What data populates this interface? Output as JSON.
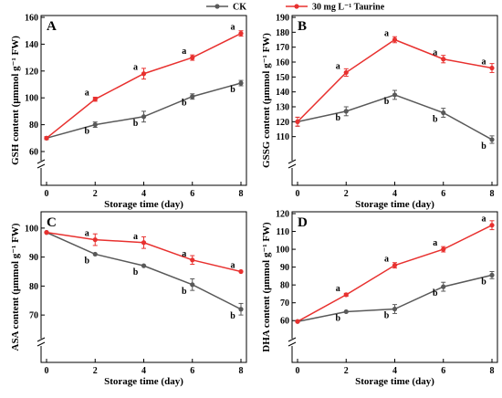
{
  "legend": [
    {
      "name": "CK",
      "color": "#595959"
    },
    {
      "name": "30 mg L⁻¹ Taurine",
      "color": "#e8312f"
    }
  ],
  "chart_data": [
    {
      "type": "line",
      "panel_label": "A",
      "xlabel": "Storage time (day)",
      "ylabel": "GSH content (μmmol g⁻¹ FW)",
      "x": [
        0,
        2,
        4,
        6,
        8
      ],
      "xticks": [
        "0",
        "2",
        "4",
        "6",
        "8"
      ],
      "ylim": [
        60,
        160
      ],
      "yticks": [
        "60",
        "80",
        "100",
        "120",
        "140",
        "160"
      ],
      "axis_break": true,
      "series": [
        {
          "name": "CK",
          "values": [
            70,
            80,
            86,
            101,
            111
          ],
          "errors": [
            1,
            2,
            4,
            2,
            2
          ],
          "sig": [
            "",
            "b",
            "b",
            "b",
            "b"
          ]
        },
        {
          "name": "30 mg L⁻¹ Taurine",
          "values": [
            70,
            99,
            118,
            130,
            148
          ],
          "errors": [
            1,
            1.5,
            4,
            2,
            2
          ],
          "sig": [
            "",
            "a",
            "a",
            "a",
            "a"
          ]
        }
      ]
    },
    {
      "type": "line",
      "panel_label": "B",
      "xlabel": "Storage time (day)",
      "ylabel": "GSSG content (μmmol g⁻¹ FW)",
      "x": [
        0,
        2,
        4,
        6,
        8
      ],
      "xticks": [
        "0",
        "2",
        "4",
        "6",
        "8"
      ],
      "ylim": [
        100,
        190
      ],
      "yticks": [
        "110",
        "120",
        "130",
        "140",
        "150",
        "160",
        "170",
        "180",
        "190"
      ],
      "axis_break": true,
      "series": [
        {
          "name": "CK",
          "values": [
            120,
            127,
            138,
            126,
            108
          ],
          "errors": [
            3,
            3,
            3,
            3,
            2.5
          ],
          "sig": [
            "",
            "b",
            "b",
            "b",
            "b"
          ]
        },
        {
          "name": "30 mg L⁻¹ Taurine",
          "values": [
            120,
            153,
            175,
            162,
            156
          ],
          "errors": [
            3,
            2.5,
            2,
            2.5,
            3
          ],
          "sig": [
            "",
            "a",
            "a",
            "a",
            "a"
          ]
        }
      ]
    },
    {
      "type": "line",
      "panel_label": "C",
      "xlabel": "Storage time (day)",
      "ylabel": "ASA content (μmmol g⁻¹ FW)",
      "x": [
        0,
        2,
        4,
        6,
        8
      ],
      "xticks": [
        "0",
        "2",
        "4",
        "6",
        "8"
      ],
      "ylim": [
        65,
        105
      ],
      "yticks": [
        "70",
        "80",
        "90",
        "100"
      ],
      "axis_break": true,
      "series": [
        {
          "name": "CK",
          "values": [
            98.5,
            91,
            87,
            80.5,
            72
          ],
          "errors": [
            0.5,
            0.5,
            0.5,
            2,
            2
          ],
          "sig": [
            "",
            "b",
            "b",
            "b",
            "b"
          ]
        },
        {
          "name": "30 mg L⁻¹ Taurine",
          "values": [
            98.5,
            96,
            95,
            89,
            85
          ],
          "errors": [
            0.5,
            2,
            2,
            1.5,
            0.5
          ],
          "sig": [
            "",
            "a",
            "a",
            "a",
            "a"
          ]
        }
      ]
    },
    {
      "type": "line",
      "panel_label": "D",
      "xlabel": "Storage time (day)",
      "ylabel": "DHA content (μmmol g⁻¹ FW)",
      "x": [
        0,
        2,
        4,
        6,
        8
      ],
      "xticks": [
        "0",
        "2",
        "4",
        "6",
        "8"
      ],
      "ylim": [
        55,
        120
      ],
      "yticks": [
        "60",
        "70",
        "80",
        "90",
        "100",
        "110",
        "120"
      ],
      "axis_break": true,
      "series": [
        {
          "name": "CK",
          "values": [
            59.5,
            65,
            66.5,
            79,
            85.5
          ],
          "errors": [
            0.5,
            0.5,
            2.5,
            2.5,
            2
          ],
          "sig": [
            "",
            "b",
            "b",
            "b",
            "b"
          ]
        },
        {
          "name": "30 mg L⁻¹ Taurine",
          "values": [
            59.5,
            74.5,
            91,
            100,
            113.5
          ],
          "errors": [
            0.5,
            0.8,
            1.5,
            1.5,
            2.5
          ],
          "sig": [
            "",
            "a",
            "a",
            "a",
            "a"
          ]
        }
      ]
    }
  ]
}
